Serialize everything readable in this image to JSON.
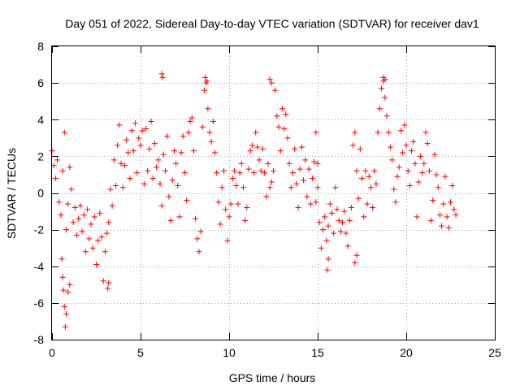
{
  "chart_data": {
    "type": "scatter",
    "title": "Day 051 of 2022, Sidereal Day-to-day VTEC variation (SDTVAR) for receiver dav1",
    "xlabel": "GPS time / hours",
    "ylabel": "SDTVAR / TECUs",
    "xlim": [
      0,
      25
    ],
    "ylim": [
      -8,
      8
    ],
    "xticks": [
      0,
      5,
      10,
      15,
      20,
      25
    ],
    "yticks": [
      -8,
      -6,
      -4,
      -2,
      0,
      2,
      4,
      6,
      8
    ],
    "grid": true,
    "marker": "plus",
    "color": "#ff0000",
    "legend": "none",
    "series": [
      {
        "name": "SDTVAR",
        "x": [
          0.0,
          0.1,
          0.2,
          0.3,
          0.4,
          0.5,
          0.6,
          0.7,
          0.8,
          0.9,
          1.0,
          1.1,
          1.2,
          1.3,
          1.4,
          1.5,
          1.6,
          1.7,
          1.8,
          1.9,
          2.0,
          2.1,
          2.2,
          2.3,
          2.4,
          2.5,
          2.6,
          2.7,
          2.8,
          2.9,
          3.0,
          3.1,
          3.2,
          3.3,
          3.4,
          3.5,
          3.6,
          3.7,
          3.8,
          3.9,
          4.0,
          4.1,
          4.2,
          4.3,
          4.4,
          4.5,
          4.6,
          4.7,
          4.8,
          4.9,
          5.0,
          5.1,
          5.2,
          5.3,
          5.4,
          5.5,
          5.6,
          5.7,
          5.8,
          5.9,
          6.0,
          6.1,
          6.2,
          6.3,
          6.4,
          6.5,
          6.6,
          6.7,
          6.8,
          6.9,
          7.0,
          7.1,
          7.2,
          7.3,
          7.4,
          7.5,
          7.6,
          7.7,
          7.8,
          7.9,
          8.0,
          8.1,
          8.2,
          8.3,
          8.4,
          8.5,
          8.6,
          8.7,
          8.8,
          8.9,
          9.0,
          9.1,
          9.2,
          9.3,
          9.4,
          9.5,
          9.6,
          9.7,
          9.8,
          9.9,
          10.0,
          10.1,
          10.2,
          10.3,
          10.4,
          10.5,
          10.6,
          10.7,
          10.8,
          10.9,
          11.0,
          11.1,
          11.2,
          11.3,
          11.4,
          11.5,
          11.6,
          11.7,
          11.8,
          11.9,
          12.0,
          12.1,
          12.2,
          12.3,
          12.4,
          12.5,
          12.6,
          12.7,
          12.8,
          12.9,
          13.0,
          13.1,
          13.2,
          13.3,
          13.4,
          13.5,
          13.6,
          13.7,
          13.8,
          13.9,
          14.0,
          14.1,
          14.2,
          14.3,
          14.4,
          14.5,
          14.6,
          14.7,
          14.8,
          14.9,
          15.0,
          15.1,
          15.2,
          15.3,
          15.4,
          15.5,
          15.6,
          15.7,
          15.8,
          15.9,
          16.0,
          16.1,
          16.2,
          16.3,
          16.4,
          16.5,
          16.6,
          16.7,
          16.8,
          16.9,
          17.0,
          17.1,
          17.2,
          17.3,
          17.4,
          17.5,
          17.6,
          17.7,
          17.8,
          17.9,
          18.0,
          18.1,
          18.2,
          18.3,
          18.4,
          18.5,
          18.6,
          18.7,
          18.8,
          18.9,
          19.0,
          19.1,
          19.2,
          19.3,
          19.4,
          19.5,
          19.6,
          19.7,
          19.8,
          19.9,
          20.0,
          20.1,
          20.2,
          20.3,
          20.4,
          20.5,
          20.6,
          20.7,
          20.8,
          20.9,
          21.0,
          21.1,
          21.2,
          21.3,
          21.4,
          21.5,
          21.6,
          21.7,
          21.8,
          21.9,
          22.0,
          22.1,
          22.2,
          22.3,
          22.4,
          22.5,
          22.6,
          22.7,
          22.8,
          0.6,
          0.65,
          0.7,
          0.75,
          0.8,
          0.55,
          0.9,
          1.0,
          6.2,
          6.25,
          8.65,
          8.75,
          12.3,
          12.4,
          18.7,
          18.8,
          14.9,
          15.0,
          15.55,
          15.6,
          3.15,
          3.2,
          17.1,
          17.2
        ],
        "y": [
          2.3,
          1.5,
          0.8,
          1.8,
          -0.5,
          -1.2,
          1.2,
          3.3,
          -2.0,
          -0.6,
          1.4,
          0.2,
          -1.6,
          -0.8,
          -2.3,
          -1.4,
          -0.7,
          -2.1,
          -1.2,
          -3.2,
          -0.9,
          -2.5,
          -1.7,
          -3.0,
          -1.3,
          -3.9,
          -2.6,
          -1.1,
          -2.4,
          -4.8,
          -3.2,
          -2.2,
          -1.6,
          0.2,
          -0.7,
          1.8,
          0.4,
          2.6,
          3.7,
          1.6,
          0.3,
          1.5,
          2.9,
          2.2,
          0.8,
          3.4,
          2.3,
          3.8,
          1.1,
          3.0,
          2.6,
          3.4,
          0.5,
          3.5,
          1.2,
          2.4,
          3.9,
          0.8,
          2.7,
          1.4,
          1.8,
          0.5,
          -0.7,
          2.1,
          1.2,
          3.1,
          -0.2,
          -1.5,
          0.7,
          2.3,
          1.6,
          0.4,
          -1.3,
          2.2,
          3.1,
          1.1,
          -0.4,
          3.3,
          3.9,
          4.1,
          2.3,
          -1.4,
          -2.5,
          -3.2,
          -2.1,
          3.6,
          5.6,
          6.0,
          4.6,
          3.3,
          2.8,
          3.9,
          2.2,
          1.1,
          -0.5,
          -1.7,
          0.3,
          1.2,
          -0.9,
          -2.6,
          -1.3,
          -0.6,
          0.8,
          1.2,
          0.4,
          -0.6,
          1.1,
          1.6,
          0.3,
          -1.5,
          -0.8,
          1.3,
          2.3,
          2.6,
          1.1,
          3.3,
          2.5,
          1.8,
          1.2,
          2.4,
          1.1,
          -0.2,
          1.6,
          0.3,
          0.6,
          1.2,
          5.6,
          4.2,
          3.6,
          2.3,
          4.6,
          3.5,
          4.3,
          3.0,
          1.6,
          0.3,
          1.1,
          2.4,
          0.5,
          -0.8,
          1.3,
          2.5,
          0.7,
          1.8,
          -0.2,
          1.3,
          -0.6,
          0.8,
          1.7,
          -0.5,
          0.3,
          -1.6,
          -3.0,
          -2.0,
          -1.3,
          -2.6,
          -1.8,
          -0.6,
          -1.1,
          -2.2,
          0.3,
          -0.9,
          -1.5,
          -2.1,
          -1.6,
          -1.0,
          -2.2,
          -2.9,
          -1.5,
          -0.8,
          2.6,
          3.3,
          1.2,
          -0.3,
          2.4,
          0.8,
          -1.3,
          1.2,
          -0.6,
          0.9,
          0.3,
          -0.8,
          1.2,
          0.5,
          3.3,
          4.6,
          5.7,
          6.1,
          5.2,
          4.2,
          3.3,
          2.5,
          1.8,
          0.2,
          -0.5,
          0.9,
          1.4,
          3.4,
          2.2,
          3.7,
          2.6,
          1.2,
          0.4,
          2.3,
          2.8,
          1.6,
          -1.3,
          0.6,
          2.0,
          1.1,
          1.6,
          3.3,
          2.7,
          1.2,
          -1.5,
          -0.4,
          2.1,
          1.0,
          0.3,
          -1.2,
          -1.8,
          -0.6,
          0.9,
          -1.3,
          -1.9,
          -0.5,
          0.4,
          -0.9,
          -1.2,
          -4.6,
          -5.3,
          -6.2,
          -7.3,
          -6.6,
          -3.6,
          -5.4,
          -5.0,
          6.5,
          6.3,
          6.3,
          6.1,
          6.2,
          6.0,
          6.3,
          6.2,
          3.3,
          1.6,
          -4.2,
          -3.6,
          -5.2,
          -4.9,
          -3.8,
          -3.4
        ]
      }
    ]
  }
}
